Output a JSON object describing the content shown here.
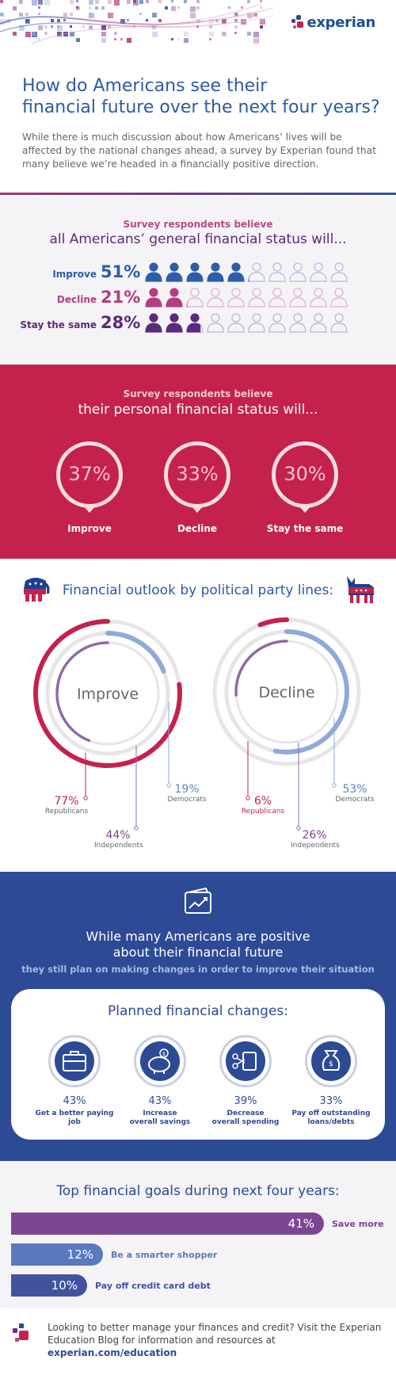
{
  "brand": {
    "name": "experian",
    "trademark": ".",
    "colors": {
      "blue": "#1d4f91",
      "magenta": "#c4224d",
      "purple": "#5c2a7a",
      "navy": "#2d4a95"
    }
  },
  "header": {
    "title_line1": "How do Americans see their",
    "title_line2": "financial future over the next four years?",
    "intro": "While there is much discussion about how Americans’ lives will be affected by the national changes ahead, a survey by Experian found that many believe we’re headed in a financially positive direction."
  },
  "general": {
    "subtitle": "Survey respondents believe",
    "heading": "all Americans’ general financial status will...",
    "rows": [
      {
        "label": "Improve",
        "value": "51%",
        "fraction": 0.51,
        "color": "#2e5ca8",
        "light": "#b9c8e4"
      },
      {
        "label": "Decline",
        "value": "21%",
        "fraction": 0.21,
        "color": "#b53c7e",
        "light": "#e4bcd2"
      },
      {
        "label": "Stay the same",
        "value": "28%",
        "fraction": 0.28,
        "color": "#5c2a7a",
        "light": "#c9bcd6"
      }
    ]
  },
  "personal": {
    "subtitle": "Survey respondents believe",
    "heading": "their personal financial status will...",
    "items": [
      {
        "value": "37%",
        "label": "Improve"
      },
      {
        "value": "33%",
        "label": "Decline"
      },
      {
        "value": "30%",
        "label": "Stay the same"
      }
    ]
  },
  "political": {
    "title": "Financial outlook by political party lines:",
    "improve": {
      "center": "Improve",
      "republicans": {
        "value": "77%",
        "name": "Republicans",
        "fraction": 0.77
      },
      "independents": {
        "value": "44%",
        "name": "Independents",
        "fraction": 0.44
      },
      "democrats": {
        "value": "19%",
        "name": "Democrats",
        "fraction": 0.19
      }
    },
    "decline": {
      "center": "Decline",
      "republicans": {
        "value": "6%",
        "name": "Republicans",
        "fraction": 0.06
      },
      "independents": {
        "value": "26%",
        "name": "Independents",
        "fraction": 0.26
      },
      "democrats": {
        "value": "53%",
        "name": "Democrats",
        "fraction": 0.53
      }
    },
    "icons": [
      "elephant-icon",
      "donkey-icon"
    ]
  },
  "changes": {
    "heading_line1": "While many Americans are positive",
    "heading_line2": "about their financial future",
    "subheading": "they still plan on making changes in order to improve their situation",
    "card_title": "Planned financial changes:",
    "items": [
      {
        "value": "43%",
        "line1": "Get a better paying job",
        "line2": "",
        "icon": "briefcase-icon"
      },
      {
        "value": "43%",
        "line1": "Increase",
        "line2": "overall savings",
        "icon": "piggy-bank-icon"
      },
      {
        "value": "39%",
        "line1": "Decrease",
        "line2": "overall spending",
        "icon": "scissors-card-icon"
      },
      {
        "value": "33%",
        "line1": "Pay off outstanding",
        "line2": "loans/debts",
        "icon": "money-bag-icon"
      }
    ]
  },
  "goals": {
    "title": "Top financial goals during next four years:",
    "items": [
      {
        "value": "41%",
        "fraction": 0.41,
        "label": "Save more",
        "color": "#7e4593"
      },
      {
        "value": "12%",
        "fraction": 0.12,
        "label": "Be a smarter shopper",
        "color": "#5b79bf"
      },
      {
        "value": "10%",
        "fraction": 0.1,
        "label": "Pay off credit card debt",
        "color": "#41539f"
      }
    ]
  },
  "footer": {
    "text_line1": "Looking to better manage your finances and credit? Visit the Experian",
    "text_line2": "Education Blog for information and resources at ",
    "url": "experian.com/education"
  }
}
